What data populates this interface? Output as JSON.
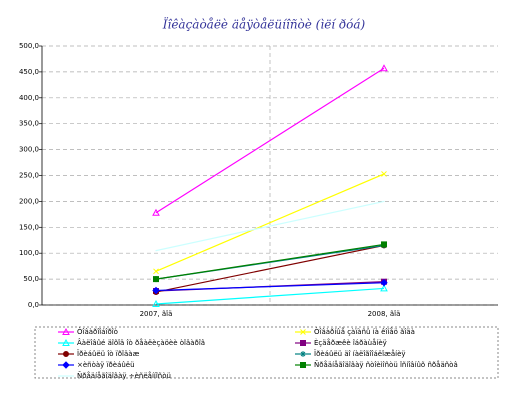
{
  "chart_data": {
    "type": "line",
    "title": "Ïîêàçàòåëè äåÿòåëüíîñòè (ìëí ðóá)",
    "categories": [
      "2007, ãîä",
      "2008, ãîä"
    ],
    "ylim": [
      0,
      500
    ],
    "yticks": [
      {
        "value": 0,
        "label": "0,0"
      },
      {
        "value": 50,
        "label": "50,0"
      },
      {
        "value": 100,
        "label": "100,0"
      },
      {
        "value": 150,
        "label": "150,0"
      },
      {
        "value": 200,
        "label": "200,0"
      },
      {
        "value": 250,
        "label": "250,0"
      },
      {
        "value": 300,
        "label": "300,0"
      },
      {
        "value": 350,
        "label": "350,0"
      },
      {
        "value": 400,
        "label": "400,0"
      },
      {
        "value": 450,
        "label": "450,0"
      },
      {
        "value": 500,
        "label": "500,0"
      }
    ],
    "grid": true,
    "series": [
      {
        "name": "Òîâàðîîáîðîò",
        "color": "#ff00ff",
        "marker": "triangle",
        "values": [
          178,
          457
        ]
      },
      {
        "name": "Òîâàðíûå çàïàñû íà êîíåö ãîäà",
        "color": "#ffff00",
        "marker": "x",
        "values": [
          65,
          253
        ]
      },
      {
        "name": "Âàëîâûé äîõîä îò ðåàëèçàöèè òîâàðîâ",
        "color": "#00ffff",
        "marker": "triangle",
        "values": [
          2,
          32
        ]
      },
      {
        "name": "Èçäåðæêè îáðàùåíèÿ",
        "color": "#800080",
        "marker": "square",
        "values": [
          27,
          45
        ]
      },
      {
        "name": "Ïðèáûëü îò ïðîäàæ",
        "color": "#800000",
        "marker": "circle",
        "values": [
          25,
          115
        ]
      },
      {
        "name": "Ïðèáûëü äî íàëîãîîáëîæåíèÿ",
        "color": "#008080",
        "marker": "plus",
        "values": [
          50,
          115
        ]
      },
      {
        "name": "×èñòàÿ ïðèáûëü",
        "color": "#0000ff",
        "marker": "diamond",
        "values": [
          28,
          43
        ]
      },
      {
        "name": "Ñðåäíåãîäîâàÿ ñòîèìîñòü îñíîâíûõ ñðåäñòâ",
        "color": "#008000",
        "marker": "square",
        "values": [
          50,
          117
        ]
      },
      {
        "name": "Ñðåäíåãîäîâàÿ ÷èñëåííîñòü",
        "color": "#ccffff",
        "marker": "none",
        "values": [
          105,
          200
        ]
      }
    ]
  }
}
